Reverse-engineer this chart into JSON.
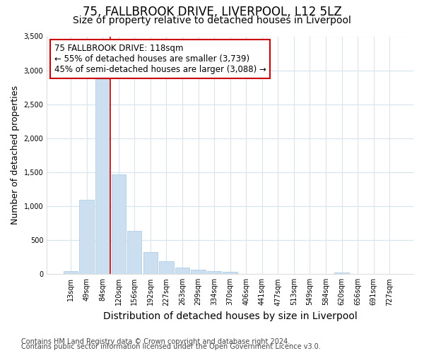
{
  "title1": "75, FALLBROOK DRIVE, LIVERPOOL, L12 5LZ",
  "title2": "Size of property relative to detached houses in Liverpool",
  "xlabel": "Distribution of detached houses by size in Liverpool",
  "ylabel": "Number of detached properties",
  "categories": [
    "13sqm",
    "49sqm",
    "84sqm",
    "120sqm",
    "156sqm",
    "192sqm",
    "227sqm",
    "263sqm",
    "299sqm",
    "334sqm",
    "370sqm",
    "406sqm",
    "441sqm",
    "477sqm",
    "513sqm",
    "549sqm",
    "584sqm",
    "620sqm",
    "656sqm",
    "691sqm",
    "727sqm"
  ],
  "values": [
    40,
    1090,
    2870,
    1470,
    635,
    330,
    190,
    100,
    65,
    40,
    35,
    5,
    5,
    3,
    0,
    0,
    0,
    25,
    0,
    0,
    0
  ],
  "bar_color": "#ccdff0",
  "bar_edge_color": "#aac8e0",
  "vline_x": 2.5,
  "vline_color": "#cc0000",
  "annotation_box_text": "75 FALLBROOK DRIVE: 118sqm\n← 55% of detached houses are smaller (3,739)\n45% of semi-detached houses are larger (3,088) →",
  "annotation_box_edgecolor": "#cc0000",
  "annotation_box_facecolor": "#ffffff",
  "ylim": [
    0,
    3500
  ],
  "yticks": [
    0,
    500,
    1000,
    1500,
    2000,
    2500,
    3000,
    3500
  ],
  "footnote1": "Contains HM Land Registry data © Crown copyright and database right 2024.",
  "footnote2": "Contains public sector information licensed under the Open Government Licence v3.0.",
  "bg_color": "#ffffff",
  "plot_bg_color": "#ffffff",
  "grid_color": "#d8e4f0",
  "title1_fontsize": 12,
  "title2_fontsize": 10,
  "xlabel_fontsize": 10,
  "ylabel_fontsize": 9,
  "footnote_fontsize": 7
}
